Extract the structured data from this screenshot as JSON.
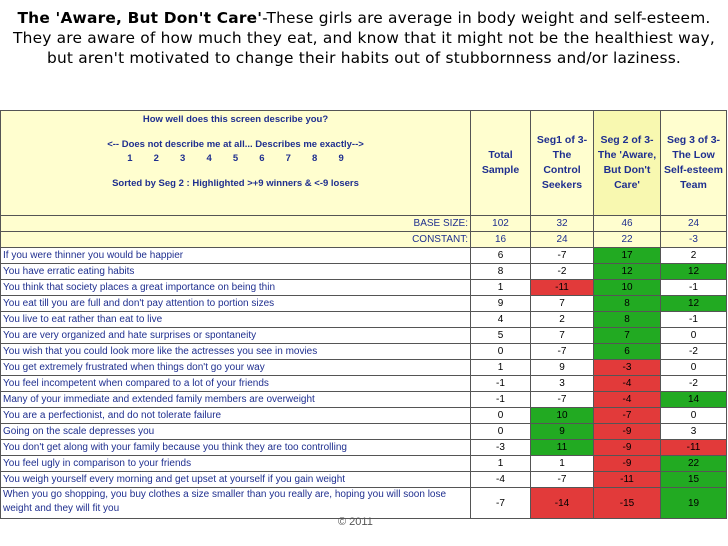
{
  "heading": {
    "bold": "The 'Aware, But Don't Care'",
    "rest": "-These girls are average in body weight and self-esteem. They are aware of how much they eat, and know that it might not be the healthiest way, but aren't motivated to change their habits out of stubbornness and/or laziness."
  },
  "question": {
    "title": "How well does this screen describe you?",
    "scale_label": "<-- Does not describe me at all... Describes me exactly-->",
    "scale_numbers": "1        2        3        4        5        6        7        8        9",
    "sort_note": "Sorted by Seg 2 :  Highlighted >+9 winners & <-9 losers"
  },
  "columns": [
    {
      "label": "Total Sample"
    },
    {
      "label": "Seg1 of 3- The Control Seekers"
    },
    {
      "label": "Seg 2 of 3- The 'Aware, But Don't Care'"
    },
    {
      "label": "Seg 3 of 3- The Low Self-esteem Team"
    }
  ],
  "base": {
    "label": "BASE SIZE:",
    "values": [
      "102",
      "32",
      "46",
      "24"
    ]
  },
  "constant": {
    "label": "CONSTANT:",
    "values": [
      "16",
      "24",
      "22",
      "-3"
    ]
  },
  "colors": {
    "winner": "#22aa22",
    "loser": "#e23a3a",
    "header_bg": "#fffecf",
    "text_blue": "#1f2f8f"
  },
  "rows": [
    {
      "q": "If you were thinner you would be happier",
      "v": [
        "6",
        "-7",
        "17",
        "2"
      ],
      "h": [
        "",
        "",
        "win",
        ""
      ]
    },
    {
      "q": "You have erratic eating habits",
      "v": [
        "8",
        "-2",
        "12",
        "12"
      ],
      "h": [
        "",
        "",
        "win",
        "win"
      ]
    },
    {
      "q": "You think that society places a great importance on being thin",
      "v": [
        "1",
        "-11",
        "10",
        "-1"
      ],
      "h": [
        "",
        "lose",
        "win",
        ""
      ]
    },
    {
      "q": "You eat till you are full and don't pay attention to portion sizes",
      "v": [
        "9",
        "7",
        "8",
        "12"
      ],
      "h": [
        "",
        "",
        "win",
        "win"
      ]
    },
    {
      "q": "You live to eat rather than eat to live",
      "v": [
        "4",
        "2",
        "8",
        "-1"
      ],
      "h": [
        "",
        "",
        "win",
        ""
      ]
    },
    {
      "q": "You are very organized and hate surprises or spontaneity",
      "v": [
        "5",
        "7",
        "7",
        "0"
      ],
      "h": [
        "",
        "",
        "win",
        ""
      ]
    },
    {
      "q": "You wish that you could look more like the actresses you see in movies",
      "v": [
        "0",
        "-7",
        "6",
        "-2"
      ],
      "h": [
        "",
        "",
        "win",
        ""
      ]
    },
    {
      "q": "You get extremely frustrated when things don't go your way",
      "v": [
        "1",
        "9",
        "-3",
        "0"
      ],
      "h": [
        "",
        "",
        "lose",
        ""
      ]
    },
    {
      "q": "You feel incompetent when compared to a lot of your friends",
      "v": [
        "-1",
        "3",
        "-4",
        "-2"
      ],
      "h": [
        "",
        "",
        "lose",
        ""
      ]
    },
    {
      "q": "Many of your immediate and extended family members are overweight",
      "v": [
        "-1",
        "-7",
        "-4",
        "14"
      ],
      "h": [
        "",
        "",
        "lose",
        "win"
      ]
    },
    {
      "q": "You are a perfectionist, and do not tolerate failure",
      "v": [
        "0",
        "10",
        "-7",
        "0"
      ],
      "h": [
        "",
        "win",
        "lose",
        ""
      ]
    },
    {
      "q": "Going on the scale depresses you",
      "v": [
        "0",
        "9",
        "-9",
        "3"
      ],
      "h": [
        "",
        "win",
        "lose",
        ""
      ]
    },
    {
      "q": "You don't get along with your family because you think they are too controlling",
      "v": [
        "-3",
        "11",
        "-9",
        "-11"
      ],
      "h": [
        "",
        "win",
        "lose",
        "lose"
      ]
    },
    {
      "q": "You feel ugly in comparison to your friends",
      "v": [
        "1",
        "1",
        "-9",
        "22"
      ],
      "h": [
        "",
        "",
        "lose",
        "win"
      ]
    },
    {
      "q": "You weigh yourself every morning and get upset at yourself if you gain weight",
      "v": [
        "-4",
        "-7",
        "-11",
        "15"
      ],
      "h": [
        "",
        "",
        "lose",
        "win"
      ]
    },
    {
      "q": "When you go shopping, you buy clothes a size smaller than you really are, hoping you will soon lose weight and they will fit you",
      "v": [
        "-7",
        "-14",
        "-15",
        "19"
      ],
      "h": [
        "",
        "lose",
        "lose",
        "win"
      ]
    }
  ],
  "copyright": "© 2011"
}
